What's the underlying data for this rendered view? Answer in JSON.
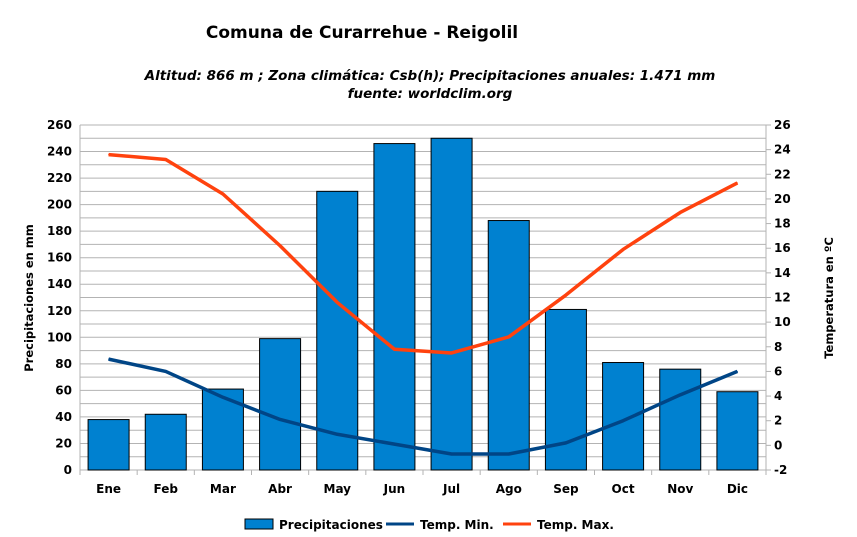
{
  "chart_data": {
    "type": "bar+line",
    "title": "Comuna de Curarrehue - Reigolil",
    "subtitle": "Altitud: 866 m ;  Zona climática: Csb(h);  Precipitaciones anuales: 1.471 mm",
    "source": "fuente: worldclim.org",
    "categories": [
      "Ene",
      "Feb",
      "Mar",
      "Abr",
      "May",
      "Jun",
      "Jul",
      "Ago",
      "Sep",
      "Oct",
      "Nov",
      "Dic"
    ],
    "ylabel": "Precipitaciones en mm",
    "y2label": "Temperatura en ºC",
    "ylim": [
      0,
      260
    ],
    "y2lim": [
      -2,
      26
    ],
    "yticks": [
      0,
      20,
      40,
      60,
      80,
      100,
      120,
      140,
      160,
      180,
      200,
      220,
      240,
      260
    ],
    "y2ticks": [
      -2,
      0,
      2,
      4,
      6,
      8,
      10,
      12,
      14,
      16,
      18,
      20,
      22,
      24,
      26
    ],
    "grid": true,
    "legend_position": "bottom",
    "series": [
      {
        "name": "Precipitaciones",
        "type": "bar",
        "axis": "left",
        "color": "#0081d0",
        "values": [
          38,
          42,
          61,
          99,
          210,
          246,
          250,
          188,
          121,
          81,
          76,
          59
        ]
      },
      {
        "name": "Temp. Min.",
        "type": "line",
        "axis": "right",
        "color": "#004586",
        "values": [
          7.0,
          6.0,
          3.9,
          2.1,
          0.9,
          0.1,
          -0.7,
          -0.7,
          0.2,
          2.0,
          4.1,
          6.0
        ]
      },
      {
        "name": "Temp. Max.",
        "type": "line",
        "axis": "right",
        "color": "#ff420e",
        "values": [
          23.6,
          23.2,
          20.4,
          16.2,
          11.6,
          7.8,
          7.5,
          8.8,
          12.2,
          15.9,
          18.9,
          21.3
        ]
      }
    ]
  }
}
